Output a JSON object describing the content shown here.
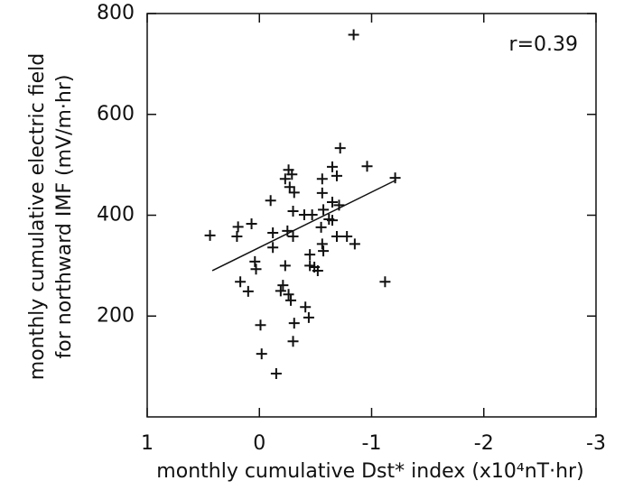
{
  "chart_data": {
    "type": "scatter",
    "x_label": "monthly cumulative Dst* index (x10⁴nT·hr)",
    "y_label": [
      "monthly cumulative electric field",
      "for northward IMF (mV/m·hr)"
    ],
    "annotation": "r=0.39",
    "color": "#111111",
    "xlim": [
      1,
      -3
    ],
    "ylim": [
      0,
      800
    ],
    "xticks": [
      1,
      0,
      -1,
      -2,
      -3
    ],
    "yticks": [
      200,
      400,
      600,
      800
    ],
    "x": [
      0.44,
      0.19,
      0.2,
      0.07,
      0.04,
      0.03,
      0.1,
      0.17,
      -0.01,
      -0.02,
      -0.15,
      -0.12,
      -0.12,
      -0.1,
      -0.23,
      -0.25,
      -0.21,
      -0.19,
      -0.26,
      -0.28,
      -0.27,
      -0.29,
      -0.26,
      -0.23,
      -0.3,
      -0.3,
      -0.31,
      -0.3,
      -0.31,
      -0.4,
      -0.41,
      -0.44,
      -0.47,
      -0.45,
      -0.45,
      -0.49,
      -0.52,
      -0.56,
      -0.56,
      -0.56,
      -0.57,
      -0.55,
      -0.57,
      -0.62,
      -0.65,
      -0.65,
      -0.65,
      -0.71,
      -0.69,
      -0.72,
      -0.69,
      -0.78,
      -0.85,
      -0.84,
      -0.96,
      -1.12,
      -1.21
    ],
    "values": [
      360,
      377,
      358,
      383,
      308,
      293,
      249,
      268,
      182,
      125,
      86,
      336,
      365,
      429,
      300,
      369,
      261,
      250,
      243,
      231,
      456,
      481,
      490,
      472,
      408,
      358,
      445,
      150,
      186,
      401,
      218,
      197,
      401,
      322,
      300,
      297,
      290,
      343,
      472,
      444,
      411,
      376,
      329,
      392,
      390,
      496,
      426,
      420,
      478,
      533,
      358,
      358,
      343,
      758,
      497,
      268,
      474
    ],
    "fit": {
      "x": [
        0.42,
        -1.22
      ],
      "values": [
        290,
        470
      ]
    }
  }
}
